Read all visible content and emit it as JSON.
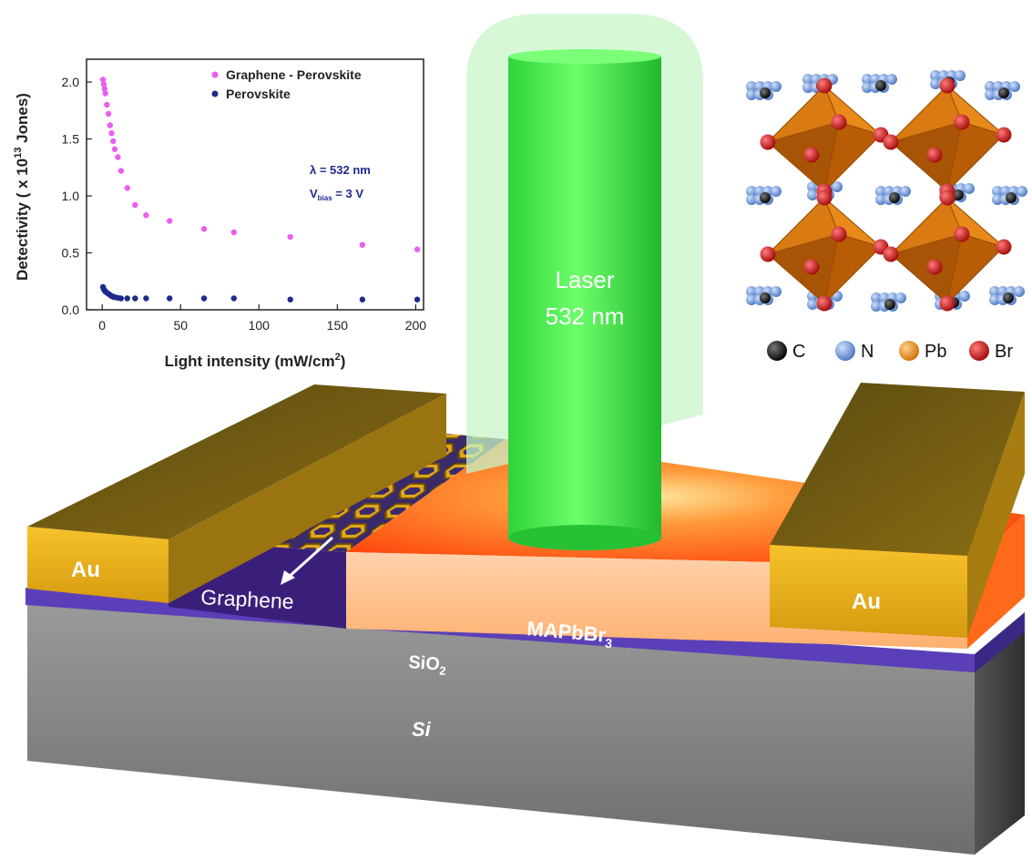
{
  "colors": {
    "gold": "#e8b218",
    "gold_dark": "#7a5d0c",
    "perovskite": "#ff5a12",
    "perovskite_front": "#ffc49a",
    "silicon": "#8e8e8e",
    "sio2": "#5b3fb8",
    "laser_green": "#3ee840",
    "graphene_series": "#e85ef0",
    "perovskite_series": "#1e2a8a",
    "atom_c": "#111111",
    "atom_n": "#6f9ae0",
    "atom_pb": "#f08a18",
    "atom_br": "#d01818"
  },
  "device": {
    "au_left_label": "Au",
    "au_right_label": "Au",
    "graphene_label": "Graphene",
    "mapbbr_label": "MAPbBr",
    "mapbbr_sub": "3",
    "sio2_label": "SiO",
    "sio2_sub": "2",
    "si_label": "Si",
    "laser_line1": "Laser",
    "laser_line2": "532 nm"
  },
  "legend_atoms": [
    {
      "label": "C",
      "icon": "carbon-atom-icon",
      "color": "#111111"
    },
    {
      "label": "N",
      "icon": "nitrogen-atom-icon",
      "color": "#6f9ae0"
    },
    {
      "label": "Pb",
      "icon": "lead-atom-icon",
      "color": "#f08a18"
    },
    {
      "label": "Br",
      "icon": "bromine-atom-icon",
      "color": "#d01818"
    }
  ],
  "chart_data": {
    "type": "scatter",
    "xlabel": "Light intensity (mW/cm",
    "xlabel_sup": "2",
    "xlabel_end": ")",
    "ylabel": "Detectivity ( x 10",
    "ylabel_sup": "13",
    "ylabel_end": " Jones)",
    "xlim": [
      -10,
      205
    ],
    "ylim": [
      0,
      2.2
    ],
    "x_ticks": [
      0,
      50,
      100,
      150,
      200
    ],
    "y_ticks": [
      0.0,
      0.5,
      1.0,
      1.5,
      2.0
    ],
    "y_tick_labels": [
      "0.0",
      "0.5",
      "1.0",
      "1.5",
      "2.0"
    ],
    "legend_position": "top-right",
    "annotation_line1": "λ = 532 nm",
    "annotation_line2_main": "V",
    "annotation_line2_sub": "bias",
    "annotation_line2_end": " = 3 V",
    "series": [
      {
        "name": "Graphene - Perovskite",
        "color": "#e85ef0",
        "points": [
          [
            0.5,
            2.02
          ],
          [
            1,
            1.98
          ],
          [
            1.5,
            1.94
          ],
          [
            2,
            1.9
          ],
          [
            3,
            1.8
          ],
          [
            4,
            1.72
          ],
          [
            5,
            1.62
          ],
          [
            6,
            1.55
          ],
          [
            7,
            1.48
          ],
          [
            8,
            1.41
          ],
          [
            10,
            1.34
          ],
          [
            12,
            1.22
          ],
          [
            16,
            1.07
          ],
          [
            21,
            0.92
          ],
          [
            28,
            0.83
          ],
          [
            43,
            0.78
          ],
          [
            65,
            0.71
          ],
          [
            84,
            0.68
          ],
          [
            120,
            0.64
          ],
          [
            166,
            0.57
          ],
          [
            201,
            0.53
          ]
        ]
      },
      {
        "name": "Perovskite",
        "color": "#1e2a8a",
        "points": [
          [
            0.5,
            0.2
          ],
          [
            1,
            0.18
          ],
          [
            1.5,
            0.17
          ],
          [
            2,
            0.16
          ],
          [
            3,
            0.15
          ],
          [
            4,
            0.14
          ],
          [
            5,
            0.13
          ],
          [
            6,
            0.12
          ],
          [
            7,
            0.115
          ],
          [
            8,
            0.11
          ],
          [
            10,
            0.105
          ],
          [
            12,
            0.1
          ],
          [
            16,
            0.1
          ],
          [
            21,
            0.1
          ],
          [
            28,
            0.1
          ],
          [
            43,
            0.1
          ],
          [
            65,
            0.1
          ],
          [
            84,
            0.1
          ],
          [
            120,
            0.09
          ],
          [
            166,
            0.09
          ],
          [
            201,
            0.09
          ]
        ]
      }
    ]
  }
}
